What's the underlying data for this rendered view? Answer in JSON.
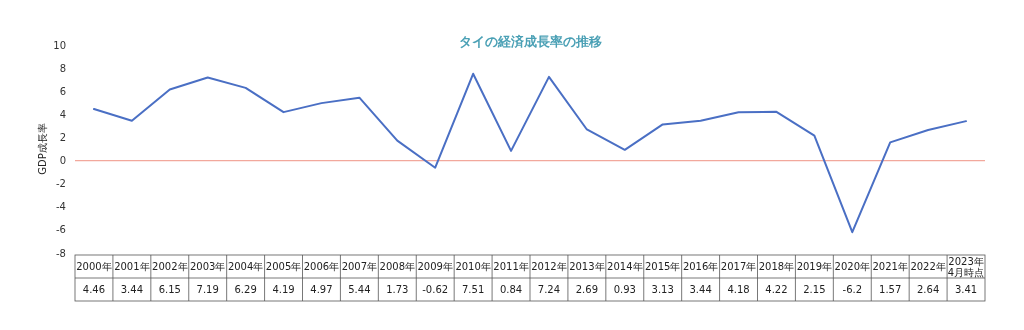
{
  "chart_data": {
    "type": "line",
    "title": "タイの経済成長率の推移",
    "ylabel": "GDP成長率",
    "categories": [
      "2000年",
      "2001年",
      "2002年",
      "2003年",
      "2004年",
      "2005年",
      "2006年",
      "2007年",
      "2008年",
      "2009年",
      "2010年",
      "2011年",
      "2012年",
      "2013年",
      "2014年",
      "2015年",
      "2016年",
      "2017年",
      "2018年",
      "2019年",
      "2020年",
      "2021年",
      "2022年",
      "2023年4月時点"
    ],
    "series": [
      {
        "color": "#4a6fc4",
        "values": [
          4.46,
          3.44,
          6.15,
          7.19,
          6.29,
          4.19,
          4.97,
          5.44,
          1.73,
          -0.62,
          7.51,
          0.84,
          7.24,
          2.69,
          0.93,
          3.13,
          3.44,
          4.18,
          4.22,
          2.15,
          -6.2,
          1.57,
          2.64,
          3.41
        ]
      }
    ],
    "ylim": [
      -8,
      10
    ],
    "yticks": [
      -8,
      -6,
      -4,
      -2,
      0,
      2,
      4,
      6,
      8,
      10
    ],
    "ref_lines": [
      {
        "axis": "y",
        "value": 0,
        "color": "#f2a89c"
      }
    ],
    "data_labels": true,
    "grid": false,
    "marker": "none",
    "line_style": "solid"
  }
}
